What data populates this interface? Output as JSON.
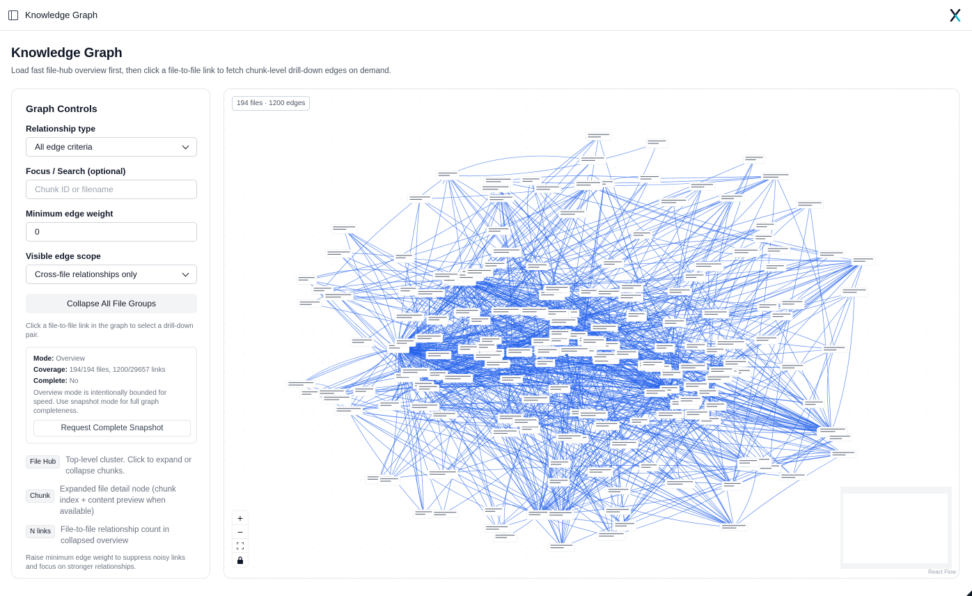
{
  "topbar": {
    "title": "Knowledge Graph",
    "sidebar_icon": "sidebar-toggle-icon",
    "logo_icon": "app-logo-icon",
    "logo_color": "#111827",
    "logo_accent": "#06b6d4"
  },
  "page": {
    "title": "Knowledge Graph",
    "subtitle": "Load fast file-hub overview first, then click a file-to-file link to fetch chunk-level drill-down edges on demand."
  },
  "controls": {
    "heading": "Graph Controls",
    "relationship_type": {
      "label": "Relationship type",
      "value": "All edge criteria"
    },
    "focus": {
      "label": "Focus / Search (optional)",
      "placeholder": "Chunk ID or filename",
      "value": ""
    },
    "min_weight": {
      "label": "Minimum edge weight",
      "value": "0"
    },
    "edge_scope": {
      "label": "Visible edge scope",
      "value": "Cross-file relationships only"
    },
    "collapse_button": "Collapse All File Groups",
    "hint": "Click a file-to-file link in the graph to select a drill-down pair.",
    "status": {
      "mode_label": "Mode:",
      "mode_value": "Overview",
      "coverage_label": "Coverage:",
      "coverage_value": "194/194 files, 1200/29657 links",
      "complete_label": "Complete:",
      "complete_value": "No",
      "note": "Overview mode is intentionally bounded for speed. Use snapshot mode for full graph completeness.",
      "snapshot_button": "Request Complete Snapshot"
    },
    "legend": [
      {
        "chip": "File Hub",
        "text": "Top-level cluster. Click to expand or collapse chunks."
      },
      {
        "chip": "Chunk",
        "text": "Expanded file detail node (chunk index + content preview when available)"
      },
      {
        "chip": "N links",
        "text": "File-to-file relationship count in collapsed overview"
      }
    ],
    "footer": "Raise minimum edge weight to suppress noisy links and focus on stronger relationships."
  },
  "graph": {
    "badge": "194 files · 1200 edges",
    "files": 194,
    "edges": 1200,
    "edge_color": "#2563eb",
    "node_border": "#e5e7eb",
    "zoom_icons": [
      "zoom-in-icon",
      "zoom-out-icon",
      "fit-view-icon",
      "lock-icon"
    ],
    "attribution": "React Flow"
  }
}
